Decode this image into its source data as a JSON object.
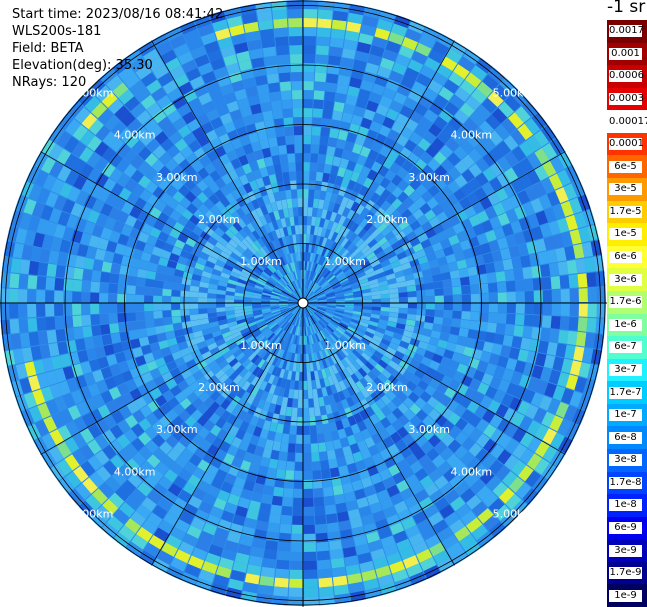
{
  "header": {
    "start_time": "Start time: 2023/08/16 08:41:42",
    "device": "WLS200s-181",
    "field": "Field: BETA",
    "elevation": "Elevation(deg): 35.30",
    "nrays": "NRays: 120"
  },
  "colorbar": {
    "unit": "-1 sr",
    "labels": [
      "0.0017",
      "0.001",
      "0.0006",
      "0.0003",
      "0.00017",
      "0.0001",
      "6e-5",
      "3e-5",
      "1.7e-5",
      "1e-5",
      "6e-6",
      "3e-6",
      "1.7e-6",
      "1e-6",
      "6e-7",
      "3e-7",
      "1.7e-7",
      "1e-7",
      "6e-8",
      "3e-8",
      "1.7e-8",
      "1e-8",
      "6e-9",
      "3e-9",
      "1.7e-9",
      "1e-9"
    ],
    "colors": [
      "#7a0000",
      "#a00000",
      "#c80000",
      "#e60000",
      "#ffffff",
      "#ff3300",
      "#ff6600",
      "#ff9900",
      "#ffcc00",
      "#ffee00",
      "#ffff33",
      "#e0ff40",
      "#b0ff70",
      "#80ffa0",
      "#50ffd0",
      "#20f0ff",
      "#00ccff",
      "#00aaff",
      "#0088ff",
      "#0066ff",
      "#0044ff",
      "#0022ff",
      "#0000ee",
      "#0000bb",
      "#000090",
      "#000060"
    ]
  },
  "chart_data": {
    "type": "heatmap",
    "projection": "polar-ppi",
    "nrays": 120,
    "ring_labels": [
      "1.00km",
      "2.00km",
      "3.00km",
      "4.00km",
      "5.00km"
    ],
    "rings_km": [
      1,
      2,
      3,
      4,
      5
    ],
    "aerosol_band_km": 4.7,
    "max_range_km": 5.1
  }
}
